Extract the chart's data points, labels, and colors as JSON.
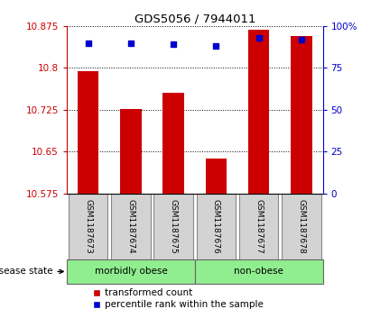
{
  "title": "GDS5056 / 7944011",
  "samples": [
    "GSM1187673",
    "GSM1187674",
    "GSM1187675",
    "GSM1187676",
    "GSM1187677",
    "GSM1187678"
  ],
  "transformed_counts": [
    10.795,
    10.727,
    10.755,
    10.638,
    10.868,
    10.858
  ],
  "percentile_ranks": [
    90,
    90,
    89,
    88,
    93,
    92
  ],
  "y_min": 10.575,
  "y_max": 10.875,
  "y_ticks": [
    10.575,
    10.65,
    10.725,
    10.8,
    10.875
  ],
  "y_tick_labels": [
    "10.575",
    "10.65",
    "10.725",
    "10.8",
    "10.875"
  ],
  "y2_ticks": [
    0,
    25,
    50,
    75,
    100
  ],
  "y2_tick_labels": [
    "0",
    "25",
    "50",
    "75",
    "100%"
  ],
  "bar_color": "#cc0000",
  "dot_color": "#0000cc",
  "grid_color": "#000000",
  "groups": [
    {
      "label": "morbidly obese",
      "indices": [
        0,
        1,
        2
      ],
      "color": "#90ee90"
    },
    {
      "label": "non-obese",
      "indices": [
        3,
        4,
        5
      ],
      "color": "#90ee90"
    }
  ],
  "disease_state_label": "disease state",
  "legend_bar_label": "transformed count",
  "legend_dot_label": "percentile rank within the sample",
  "tick_label_color_left": "#cc0000",
  "tick_label_color_right": "#0000cc",
  "bar_width": 0.5,
  "dot_size": 22,
  "figsize": [
    4.11,
    3.63
  ],
  "dpi": 100
}
